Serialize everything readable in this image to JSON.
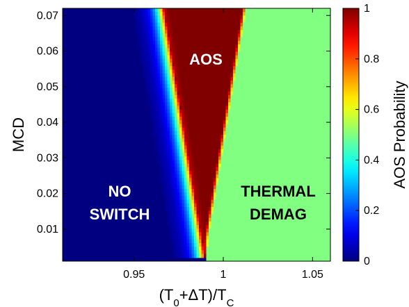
{
  "chart_data": {
    "type": "heatmap",
    "title": "",
    "xlabel": {
      "prefix": "(T",
      "sub1": "0",
      "middle": "+ΔT)/T",
      "sub2": "C"
    },
    "ylabel": "MCD",
    "xlim": [
      0.91,
      1.06
    ],
    "ylim": [
      0.001,
      0.072
    ],
    "x_ticks": [
      0.95,
      1.0,
      1.05
    ],
    "x_tick_labels": [
      "0.95",
      "1",
      "1.05"
    ],
    "y_ticks": [
      0.01,
      0.02,
      0.03,
      0.04,
      0.05,
      0.06,
      0.07
    ],
    "y_tick_labels": [
      "0.01",
      "0.02",
      "0.03",
      "0.04",
      "0.05",
      "0.06",
      "0.07"
    ],
    "colorbar": {
      "label": "AOS Probability",
      "range": [
        0,
        1
      ],
      "ticks": [
        0,
        0.2,
        0.4,
        0.6,
        0.8,
        1
      ],
      "tick_labels": [
        "0",
        "0.2",
        "0.4",
        "0.6",
        "0.8",
        "1"
      ],
      "colormap": "jet"
    },
    "regions": [
      {
        "name": "NO SWITCH",
        "lines": [
          "NO",
          "SWITCH"
        ],
        "value": 0,
        "color": "#ffffff"
      },
      {
        "name": "AOS",
        "lines": [
          "AOS"
        ],
        "value": 1,
        "color": "#ffffff"
      },
      {
        "name": "THERMAL DEMAG",
        "lines": [
          "THERMAL",
          "DEMAG"
        ],
        "value": 0.5,
        "color": "#000000"
      }
    ],
    "aos_boundary": {
      "apex": {
        "x": 0.99,
        "y": 0.002
      },
      "left_edge_top": {
        "x": 0.967,
        "y": 0.072
      },
      "right_edge_top": {
        "x": 1.013,
        "y": 0.072
      }
    },
    "thermal_demag_value": 0.5
  }
}
